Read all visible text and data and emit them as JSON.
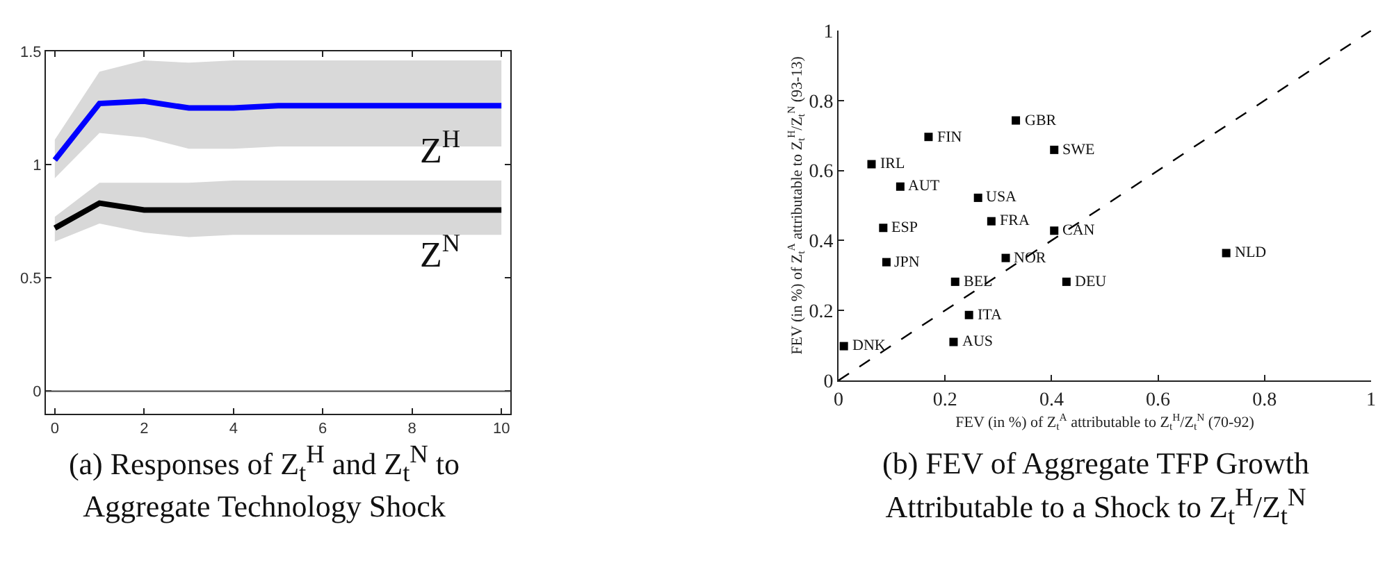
{
  "chart_data": [
    {
      "type": "line",
      "title": "(a) Responses of Z$_{t}$$^{H}$ and Z$_{t}$$^{N}$ to Aggregate Technology Shock",
      "x": [
        0,
        1,
        2,
        3,
        4,
        5,
        6,
        7,
        8,
        9,
        10
      ],
      "xlim": [
        -0.2,
        10.2
      ],
      "xticks": [
        0,
        2,
        4,
        6,
        8,
        10
      ],
      "ylim": [
        -0.1,
        1.5
      ],
      "yticks": [
        0,
        0.5,
        1,
        1.5
      ],
      "grid": false,
      "legend": false,
      "series": [
        {
          "name": "Z$^{H}$",
          "color": "#0000ff",
          "values": [
            1.02,
            1.27,
            1.28,
            1.25,
            1.25,
            1.26,
            1.26,
            1.26,
            1.26,
            1.26,
            1.26
          ],
          "lower": [
            0.94,
            1.14,
            1.12,
            1.07,
            1.07,
            1.08,
            1.08,
            1.08,
            1.08,
            1.08,
            1.08
          ],
          "upper": [
            1.11,
            1.41,
            1.46,
            1.45,
            1.46,
            1.46,
            1.46,
            1.46,
            1.46,
            1.46,
            1.46
          ]
        },
        {
          "name": "Z$^{N}$",
          "color": "#000000",
          "values": [
            0.72,
            0.83,
            0.8,
            0.8,
            0.8,
            0.8,
            0.8,
            0.8,
            0.8,
            0.8,
            0.8
          ],
          "lower": [
            0.66,
            0.74,
            0.7,
            0.68,
            0.69,
            0.69,
            0.69,
            0.69,
            0.69,
            0.69,
            0.69
          ],
          "upper": [
            0.77,
            0.92,
            0.92,
            0.92,
            0.93,
            0.93,
            0.93,
            0.93,
            0.93,
            0.93,
            0.93
          ]
        }
      ],
      "ref_lines": [
        {
          "axis": "y",
          "value": 0,
          "color": "#404040"
        }
      ]
    },
    {
      "type": "scatter",
      "title": "(b) FEV of Aggregate TFP Growth Attributable to a Shock to Z$_{t}$$^{H}$/Z$_{t}$$^{N}$",
      "xlabel": "FEV (in %) of Z$_{t}$$^{A}$ attributable to Z$_{t}$$^{H}$/Z$_{t}$$^{N}$ (70-92)",
      "ylabel": "FEV (in %) of Z$_{t}$$^{A}$ attributable to Z$_{t}$$^{H}$/Z$_{t}$$^{N}$ (93-13)",
      "xlim": [
        0,
        1
      ],
      "xticks": [
        0,
        0.2,
        0.4,
        0.6,
        0.8,
        1
      ],
      "ylim": [
        0,
        1
      ],
      "yticks": [
        0,
        0.2,
        0.4,
        0.6,
        0.8,
        1
      ],
      "grid": false,
      "legend": false,
      "marker": "square",
      "series": [
        {
          "color": "#000000",
          "x": [
            0.333,
            0.169,
            0.405,
            0.062,
            0.116,
            0.262,
            0.287,
            0.405,
            0.084,
            0.728,
            0.09,
            0.314,
            0.219,
            0.428,
            0.245,
            0.216,
            0.01
          ],
          "values": [
            0.743,
            0.696,
            0.659,
            0.618,
            0.554,
            0.522,
            0.455,
            0.428,
            0.436,
            0.364,
            0.338,
            0.35,
            0.282,
            0.282,
            0.187,
            0.11,
            0.098
          ]
        },
        {
          "type": "line",
          "color": "#000000",
          "line_style": "dashed",
          "marker": "none",
          "x": [
            0,
            1
          ],
          "values": [
            0,
            1
          ]
        }
      ],
      "annotations": [
        {
          "text": "GBR",
          "x": 0.333,
          "y": 0.743
        },
        {
          "text": "FIN",
          "x": 0.169,
          "y": 0.696
        },
        {
          "text": "SWE",
          "x": 0.405,
          "y": 0.659
        },
        {
          "text": "IRL",
          "x": 0.062,
          "y": 0.618
        },
        {
          "text": "AUT",
          "x": 0.116,
          "y": 0.554
        },
        {
          "text": "USA",
          "x": 0.262,
          "y": 0.522
        },
        {
          "text": "FRA",
          "x": 0.287,
          "y": 0.455
        },
        {
          "text": "CAN",
          "x": 0.405,
          "y": 0.428
        },
        {
          "text": "ESP",
          "x": 0.084,
          "y": 0.436
        },
        {
          "text": "NLD",
          "x": 0.728,
          "y": 0.364
        },
        {
          "text": "JPN",
          "x": 0.09,
          "y": 0.338
        },
        {
          "text": "NOR",
          "x": 0.314,
          "y": 0.35
        },
        {
          "text": "BEL",
          "x": 0.219,
          "y": 0.282
        },
        {
          "text": "DEU",
          "x": 0.428,
          "y": 0.282
        },
        {
          "text": "ITA",
          "x": 0.245,
          "y": 0.187
        },
        {
          "text": "AUS",
          "x": 0.216,
          "y": 0.11
        },
        {
          "text": "DNK",
          "x": 0.01,
          "y": 0.098
        }
      ]
    }
  ]
}
